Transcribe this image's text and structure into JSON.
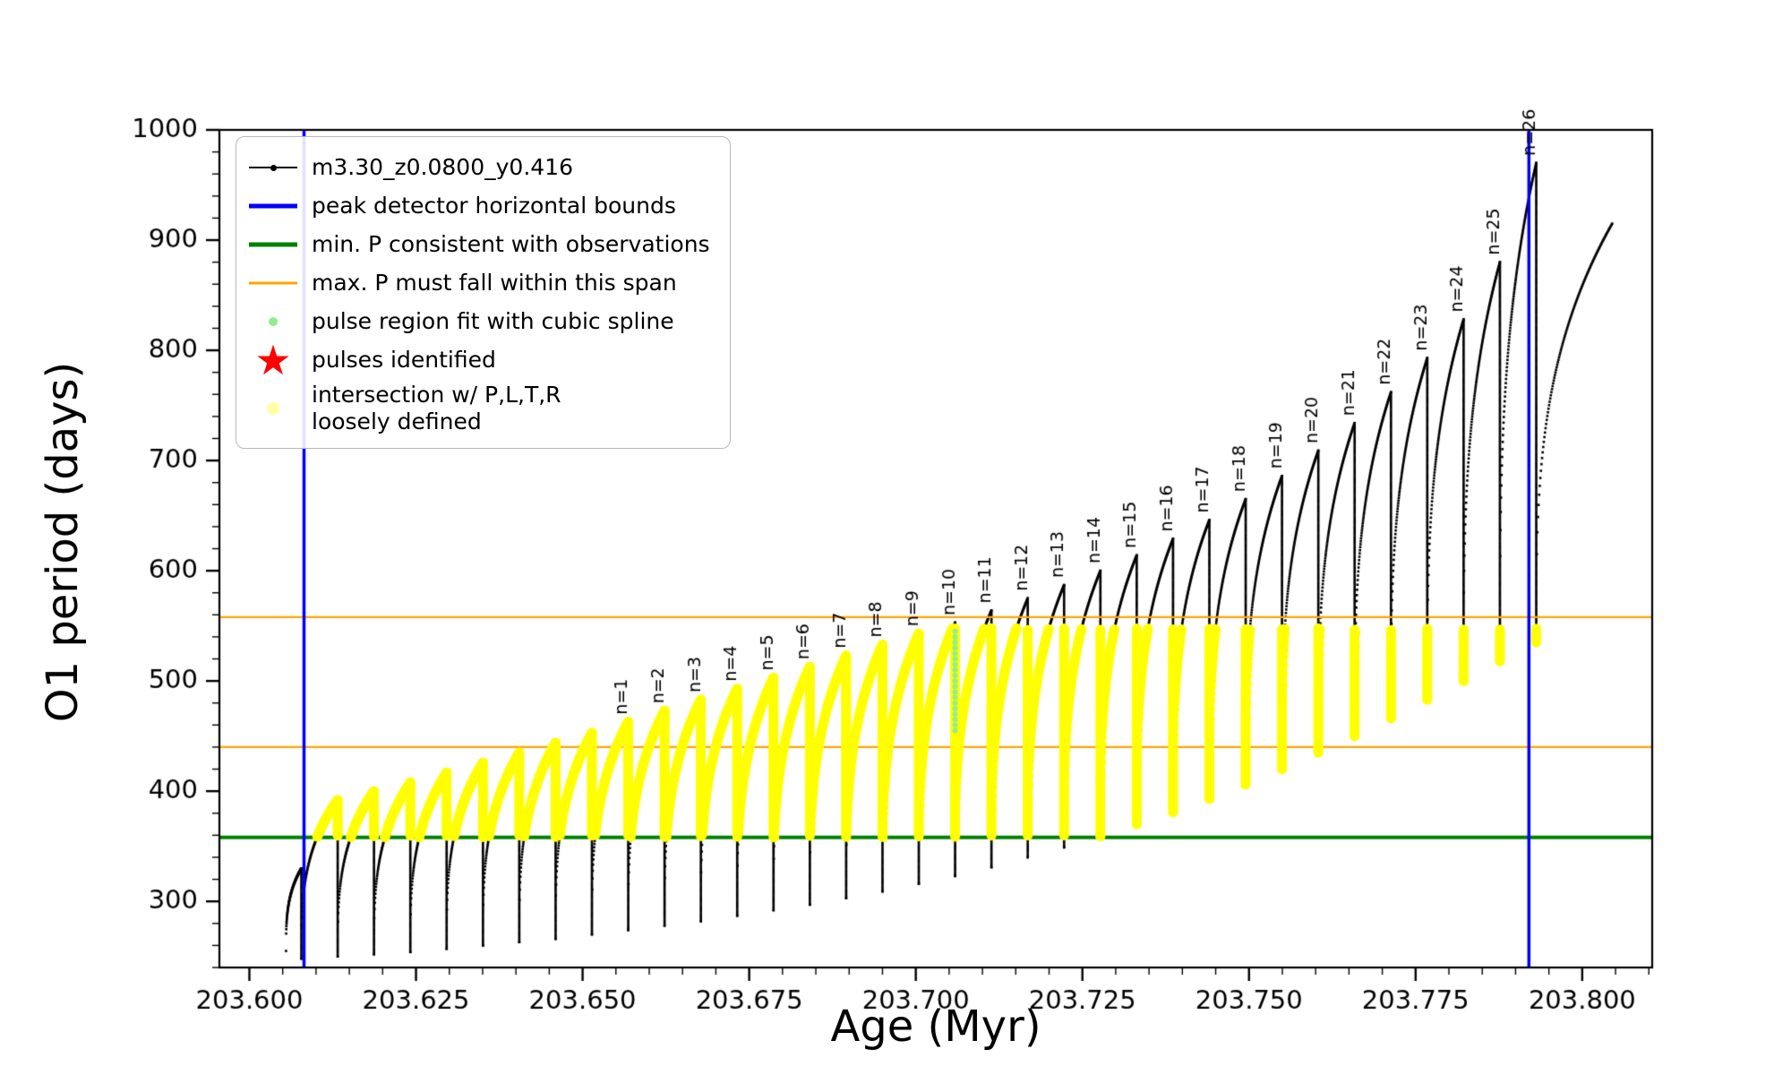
{
  "chart_data": {
    "type": "line",
    "title": "",
    "xlabel": "Age (Myr)",
    "ylabel": "O1 period (days)",
    "series_name": "m3.30_z0.0800_y0.416",
    "xlim": [
      203.5955,
      203.8105
    ],
    "ylim": [
      240,
      1000
    ],
    "axes": {
      "x_major_ticks": [
        203.6,
        203.625,
        203.65,
        203.675,
        203.7,
        203.725,
        203.75,
        203.775,
        203.8
      ],
      "x_minor_start": 203.6,
      "x_minor_step": 0.005,
      "x_tick_decimals": 3,
      "y_major_ticks": [
        300,
        400,
        500,
        600,
        700,
        800,
        900,
        1000
      ],
      "y_minor_start": 240,
      "y_minor_step": 20
    },
    "pulses": {
      "t_first": 203.6055,
      "t_base": 203.6078,
      "t_step": 0.00545,
      "t_end": 203.8045,
      "arc_exponent": 0.32,
      "mins": [
        255,
        248,
        250,
        252,
        254,
        257,
        260,
        263,
        266,
        270,
        274,
        278,
        282,
        287,
        292,
        297,
        303,
        309,
        316,
        323,
        331,
        340,
        349,
        359,
        370,
        381,
        393,
        406,
        420,
        435,
        450,
        466,
        483,
        500,
        518,
        535
      ],
      "peaks": [
        330,
        392,
        400,
        408,
        417,
        426,
        435,
        444,
        453,
        463,
        473,
        483,
        493,
        503,
        513,
        523,
        533,
        543,
        553,
        564,
        575,
        587,
        600,
        614,
        629,
        646,
        665,
        686,
        709,
        734,
        762,
        793,
        828,
        880,
        970,
        915
      ]
    },
    "pulse_labels": {
      "prefix": "n=",
      "first_n": 1,
      "last_n": 26,
      "first_arc_index": 9
    },
    "hlines": [
      {
        "y": 358,
        "color": "#008000",
        "lw": 4,
        "name": "min-P-consistent-line"
      },
      {
        "y": 440,
        "color": "#ffa500",
        "lw": 2.2,
        "name": "max-P-span-lower-line"
      },
      {
        "y": 558,
        "color": "#ffa500",
        "lw": 2.2,
        "name": "max-P-span-upper-line"
      }
    ],
    "vlines": [
      {
        "x": 203.6082,
        "color": "#0000ff",
        "lw": 3.5,
        "name": "peak-detector-left-bound"
      },
      {
        "x": 203.792,
        "color": "#0000ff",
        "lw": 3.5,
        "name": "peak-detector-right-bound"
      }
    ],
    "yellow_band": {
      "y_min": 358,
      "y_max": 548,
      "color": "#ffff00"
    },
    "spline_segment": {
      "x": 203.7059,
      "y_from": 455,
      "y_to": 545,
      "color": "#90ee90"
    }
  },
  "legend": {
    "star_glyph": "★",
    "items": [
      {
        "label": "m3.30_z0.0800_y0.416"
      },
      {
        "label": "peak detector horizontal bounds"
      },
      {
        "label": "min. P consistent with observations"
      },
      {
        "label": "max. P must fall within this span"
      },
      {
        "label": "pulse region fit with cubic spline"
      },
      {
        "label": "pulses identified"
      },
      {
        "label": "intersection w/ P,L,T,R\nloosely defined"
      }
    ]
  }
}
